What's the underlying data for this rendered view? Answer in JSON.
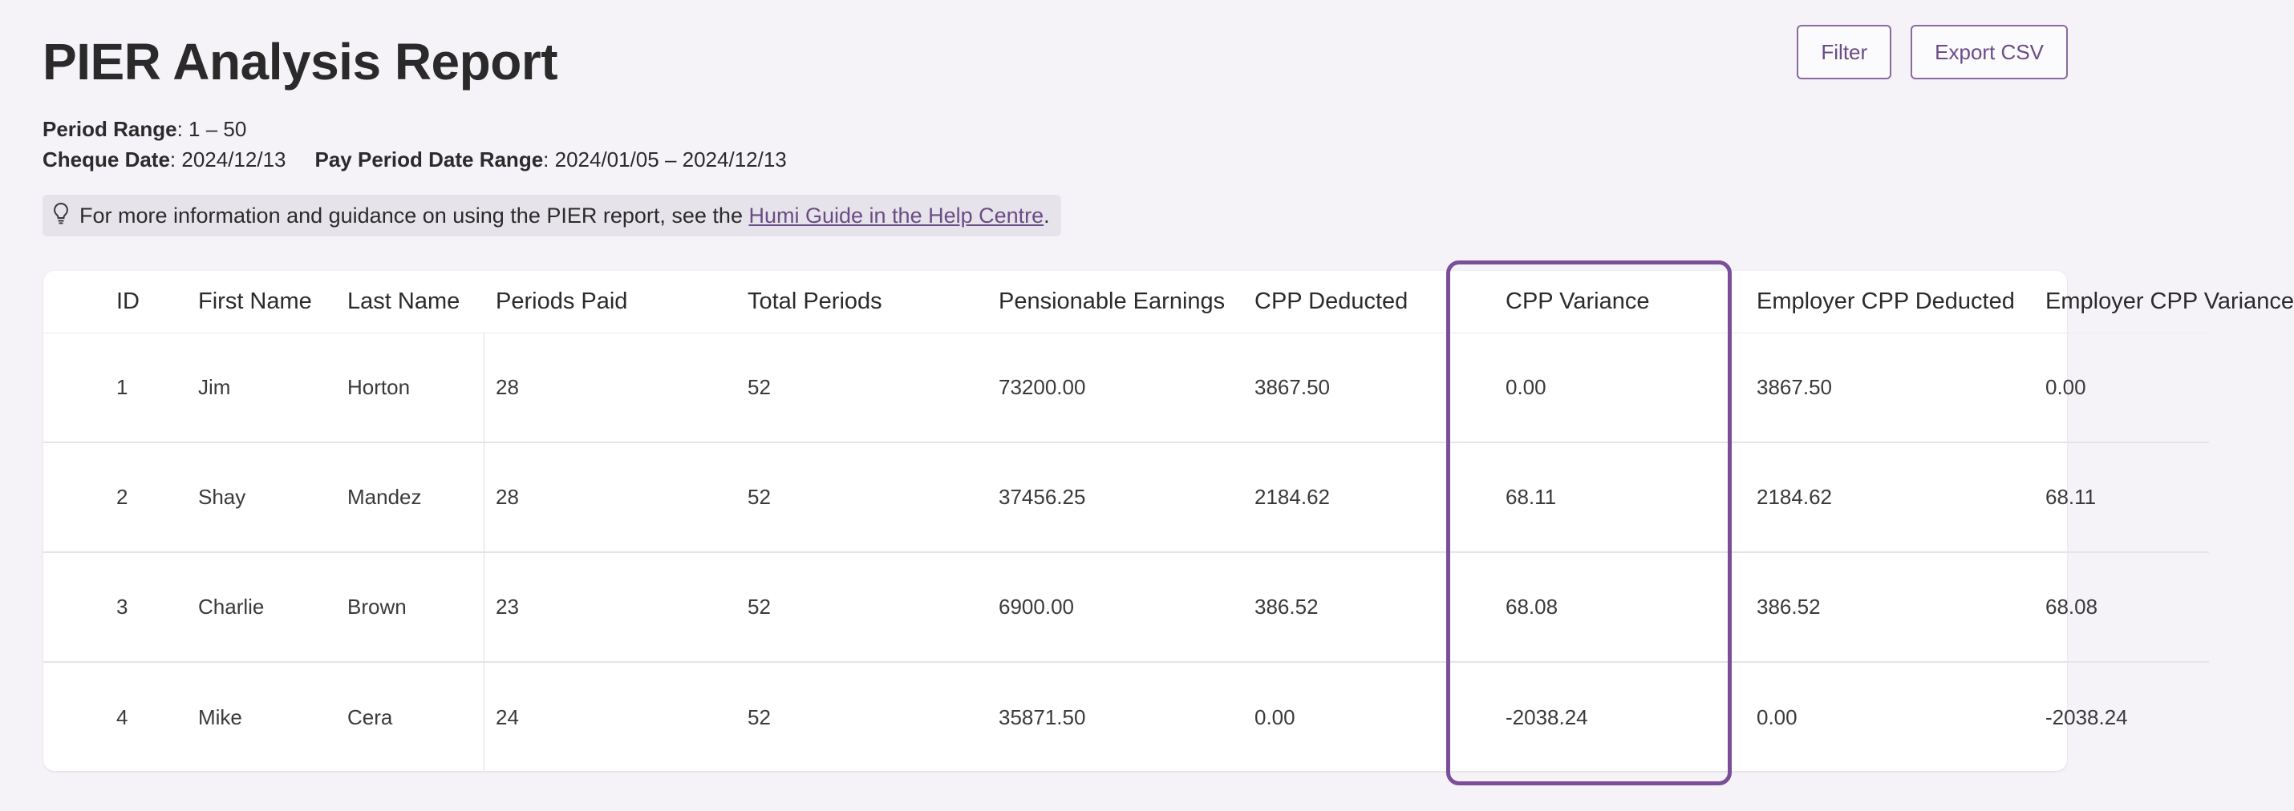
{
  "page": {
    "title": "PIER Analysis Report",
    "actions": {
      "filter": "Filter",
      "export": "Export CSV"
    },
    "meta": {
      "period_range_label": "Period Range",
      "period_range_value": ": 1 – 50",
      "cheque_date_label": "Cheque Date",
      "cheque_date_value": ": 2024/12/13",
      "pay_period_label": "Pay Period Date Range",
      "pay_period_value": ": 2024/01/05 – 2024/12/13"
    },
    "info": {
      "text": "For more information and guidance on using the PIER report, see the",
      "link": "Humi Guide in the Help Centre",
      "suffix": "."
    }
  },
  "table": {
    "columns": [
      "ID",
      "First Name",
      "Last Name",
      "Periods Paid",
      "Total Periods",
      "Pensionable Earnings",
      "CPP Deducted",
      "CPP Variance",
      "Employer CPP Deducted",
      "Employer CPP Variance"
    ],
    "rows": [
      [
        "1",
        "Jim",
        "Horton",
        "28",
        "52",
        "73200.00",
        "3867.50",
        "0.00",
        "3867.50",
        "0.00"
      ],
      [
        "2",
        "Shay",
        "Mandez",
        "28",
        "52",
        "37456.25",
        "2184.62",
        "68.11",
        "2184.62",
        "68.11"
      ],
      [
        "3",
        "Charlie",
        "Brown",
        "23",
        "52",
        "6900.00",
        "386.52",
        "68.08",
        "386.52",
        "68.08"
      ],
      [
        "4",
        "Mike",
        "Cera",
        "24",
        "52",
        "35871.50",
        "0.00",
        "-2038.24",
        "0.00",
        "-2038.24"
      ]
    ]
  },
  "colors": {
    "accent": "#7a4e98",
    "button_text": "#6a4c86",
    "background": "#f5f3f8",
    "banner_bg": "#e7e3ea"
  }
}
